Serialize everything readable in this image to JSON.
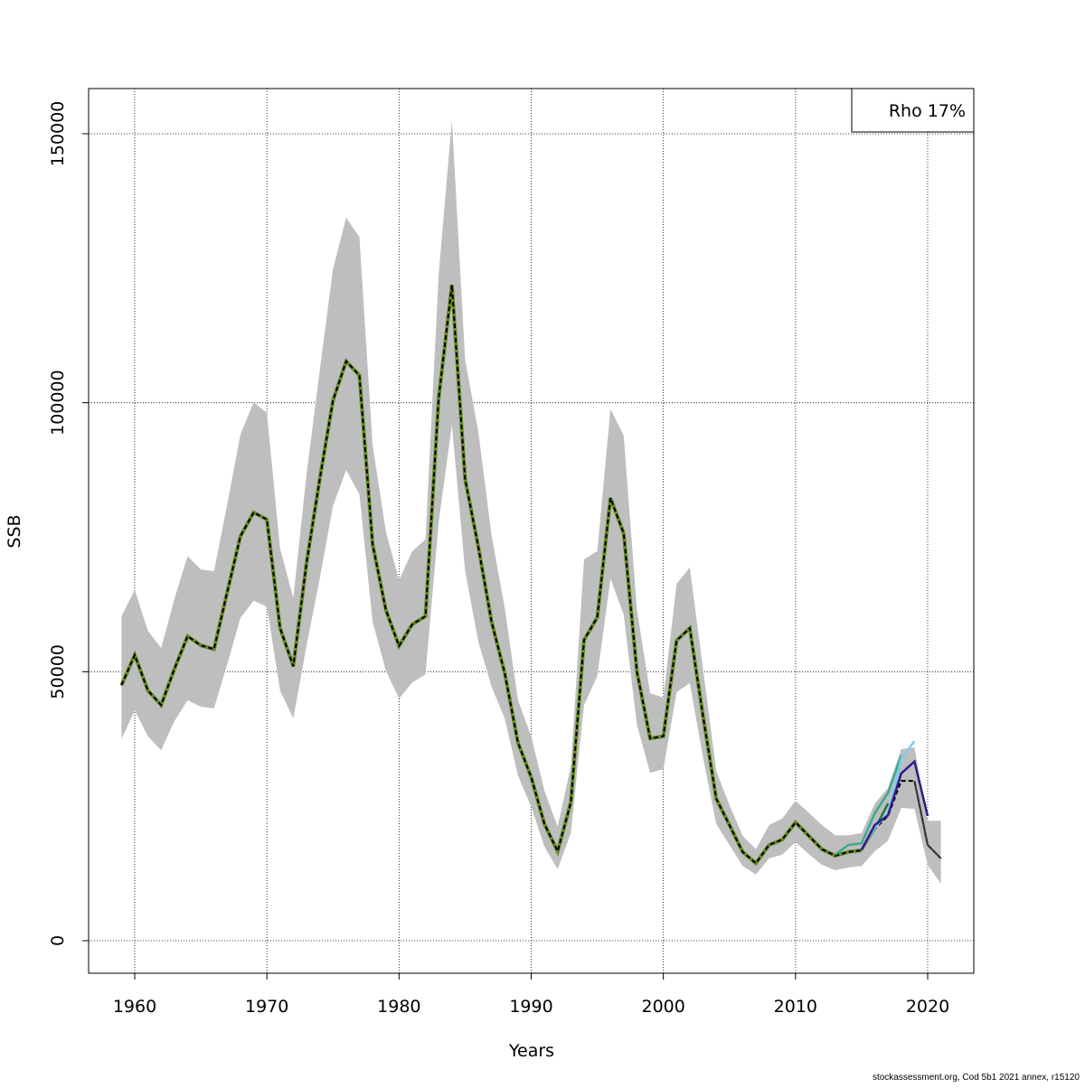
{
  "chart_data": {
    "type": "line",
    "title": "",
    "xlabel": "Years",
    "ylabel": "SSB",
    "xlim": [
      1956.6,
      2023.4
    ],
    "ylim": [
      -6000,
      159500
    ],
    "x_ticks": [
      1960,
      1970,
      1980,
      1990,
      2000,
      2010,
      2020
    ],
    "y_ticks": [
      0,
      50000,
      100000,
      150000
    ],
    "y_tick_labels": [
      "0",
      "50000",
      "100000",
      "150000"
    ],
    "grid": true,
    "legend": {
      "position": "top-right",
      "text": "Rho 17%"
    },
    "colors": {
      "band": "#bebebe",
      "estimate": "#000000",
      "retro": [
        "#7b8c1c",
        "#1e7a3a",
        "#3aaa8e",
        "#7ecbee",
        "#2e1a8c"
      ]
    },
    "years": [
      1959,
      1960,
      1961,
      1962,
      1963,
      1964,
      1965,
      1966,
      1967,
      1968,
      1969,
      1970,
      1971,
      1972,
      1973,
      1974,
      1975,
      1976,
      1977,
      1978,
      1979,
      1980,
      1981,
      1982,
      1983,
      1984,
      1985,
      1986,
      1987,
      1988,
      1989,
      1990,
      1991,
      1992,
      1993,
      1994,
      1995,
      1996,
      1997,
      1998,
      1999,
      2000,
      2001,
      2002,
      2003,
      2004,
      2005,
      2006,
      2007,
      2008,
      2009,
      2010,
      2011,
      2012,
      2013,
      2014,
      2015,
      2016,
      2017,
      2018,
      2019,
      2020,
      2021
    ],
    "estimate": [
      47500,
      53100,
      46500,
      43800,
      50500,
      56600,
      54900,
      54200,
      64800,
      75200,
      79600,
      78300,
      58100,
      51000,
      70200,
      85800,
      100400,
      107700,
      105100,
      73700,
      61500,
      54800,
      58800,
      60300,
      100900,
      121900,
      85800,
      73200,
      59300,
      49700,
      36800,
      30400,
      21700,
      16600,
      25700,
      55900,
      60100,
      82300,
      75700,
      50000,
      37600,
      38000,
      55800,
      58100,
      41800,
      26400,
      21500,
      16500,
      14400,
      17800,
      18800,
      22000,
      19500,
      17000,
      15800,
      16500,
      16800,
      20800,
      23200,
      29700,
      29700,
      17800,
      15300
    ],
    "upper": [
      60300,
      65200,
      57600,
      54400,
      63500,
      71500,
      69000,
      68700,
      81100,
      94100,
      100100,
      98100,
      72900,
      63700,
      86700,
      106000,
      124800,
      134400,
      130800,
      92200,
      76100,
      67000,
      72400,
      74600,
      123900,
      152500,
      108000,
      94600,
      75400,
      61800,
      44700,
      38000,
      27900,
      21200,
      32400,
      70900,
      72400,
      98800,
      93900,
      61500,
      46000,
      45200,
      66300,
      69400,
      50600,
      31600,
      25200,
      19500,
      17000,
      21500,
      22700,
      26000,
      23800,
      21500,
      19600,
      19600,
      20000,
      25500,
      28400,
      35600,
      35900,
      22300,
      22300
    ],
    "lower": [
      37500,
      42800,
      38000,
      35400,
      40800,
      44700,
      43500,
      43200,
      51400,
      60000,
      63200,
      62100,
      46500,
      41300,
      54800,
      67300,
      80800,
      87500,
      83000,
      59300,
      50200,
      45000,
      48000,
      49500,
      77800,
      95900,
      68700,
      55600,
      47200,
      41300,
      30700,
      24900,
      17500,
      13300,
      20000,
      43800,
      49200,
      67300,
      60600,
      40100,
      31200,
      31900,
      46200,
      47900,
      34100,
      21700,
      17800,
      13900,
      12300,
      15300,
      16000,
      18300,
      16100,
      14100,
      13100,
      13600,
      13900,
      16600,
      18600,
      24700,
      24500,
      14100,
      10600
    ],
    "retro_peels": [
      {
        "x": [
          2015,
          2016
        ],
        "values": [
          16800,
          20800
        ]
      },
      {
        "x": [
          2015,
          2016,
          2017
        ],
        "values": [
          17000,
          20800,
          25500
        ]
      },
      {
        "x": [
          2013,
          2014,
          2015,
          2016,
          2017,
          2018
        ],
        "values": [
          16000,
          17800,
          18100,
          23700,
          27500,
          34400
        ]
      },
      {
        "x": [
          2015,
          2016,
          2017,
          2018,
          2019
        ],
        "values": [
          17000,
          21000,
          23700,
          33800,
          37100
        ]
      },
      {
        "x": [
          2015,
          2016,
          2017,
          2018,
          2019,
          2020
        ],
        "values": [
          16900,
          21500,
          23300,
          31100,
          33300,
          23200
        ]
      }
    ]
  },
  "footer": "stockassessment.org, Cod 5b1 2021 annex, r15120"
}
